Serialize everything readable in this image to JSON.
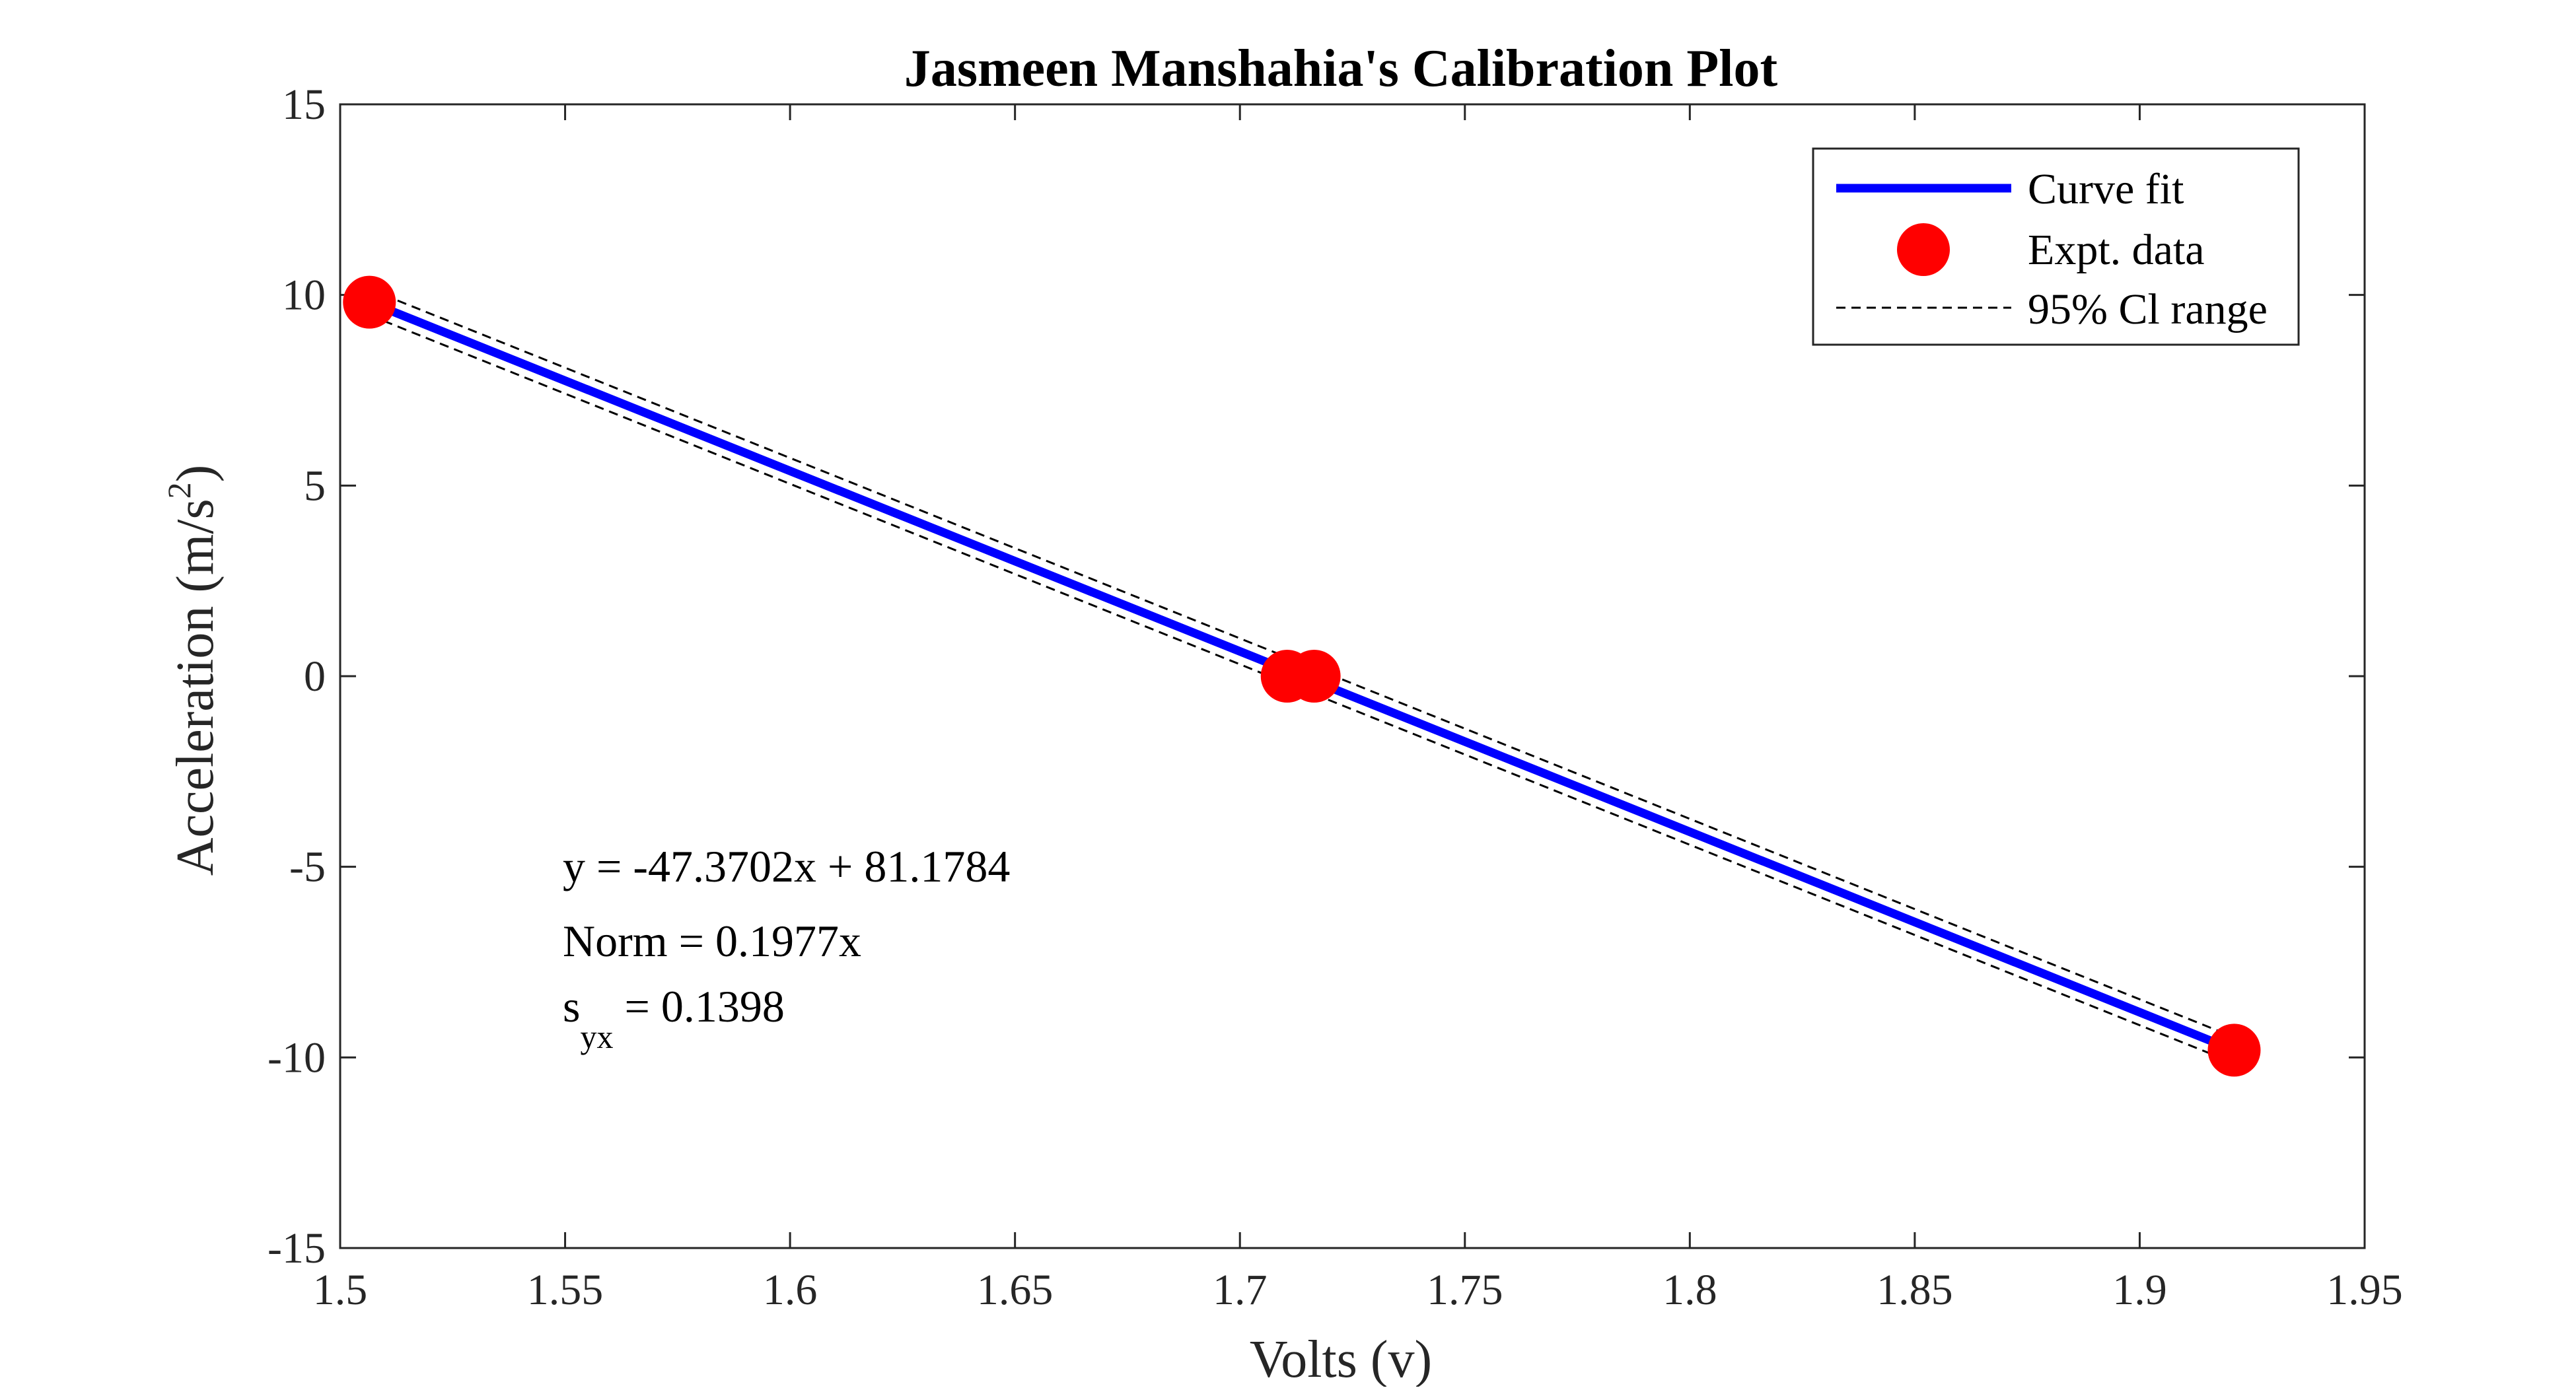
{
  "chart_data": {
    "type": "line",
    "title": "Jasmeen Manshahia's Calibration Plot",
    "xlabel": "Volts (v)",
    "ylabel_base": "Acceleration (m/s",
    "ylabel_sup": "2",
    "ylabel_close": ")",
    "xlim": [
      1.5,
      1.95
    ],
    "ylim": [
      -15,
      15
    ],
    "xticks": [
      1.5,
      1.55,
      1.6,
      1.65,
      1.7,
      1.75,
      1.8,
      1.85,
      1.9,
      1.95
    ],
    "xtick_labels": [
      "1.5",
      "1.55",
      "1.6",
      "1.65",
      "1.7",
      "1.75",
      "1.8",
      "1.85",
      "1.9",
      "1.95"
    ],
    "yticks": [
      -15,
      -10,
      -5,
      0,
      5,
      10,
      15
    ],
    "ytick_labels": [
      "-15",
      "-10",
      "-5",
      "0",
      "5",
      "10",
      "15"
    ],
    "grid": false,
    "legend_position": "top-right",
    "series": [
      {
        "name": "Curve fit",
        "kind": "line",
        "color": "#0000FF",
        "x": [
          1.5065,
          1.921
        ],
        "y": [
          9.81,
          -9.81
        ]
      },
      {
        "name": "Expt. data",
        "kind": "scatter",
        "color": "#FF0000",
        "x": [
          1.5065,
          1.7105,
          1.7165,
          1.921
        ],
        "y": [
          9.81,
          0,
          0,
          -9.81
        ]
      },
      {
        "name": "95% Cl range",
        "kind": "dashed",
        "color": "#000000",
        "upper": {
          "x": [
            1.5065,
            1.921
          ],
          "y": [
            10.15,
            -9.47
          ]
        },
        "lower": {
          "x": [
            1.5065,
            1.921
          ],
          "y": [
            9.47,
            -10.15
          ]
        }
      }
    ],
    "annotations": {
      "equation": "y = -47.3702x + 81.1784",
      "norm": "Norm = 0.1977x",
      "syx_base": "s",
      "syx_sub": "yx",
      "syx_value": " = 0.1398"
    }
  }
}
